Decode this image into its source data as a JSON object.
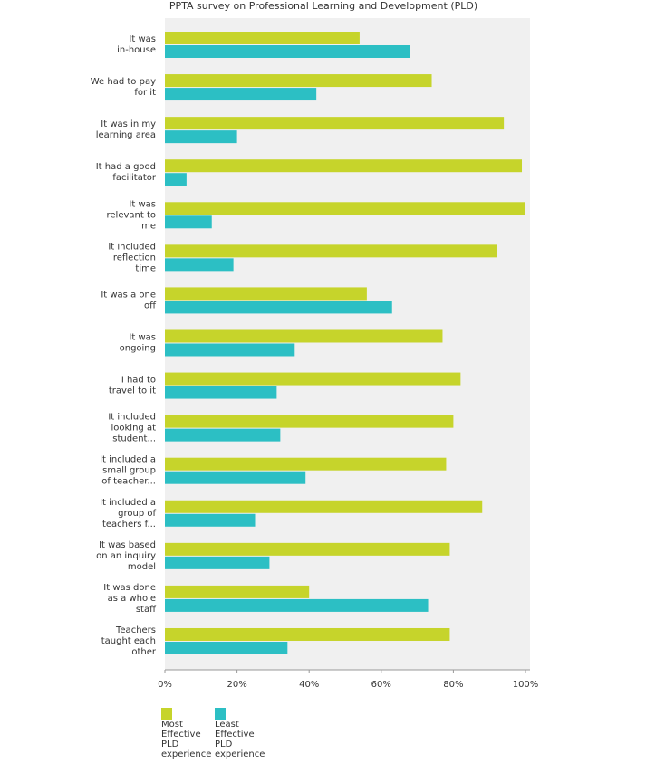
{
  "chart_data": {
    "type": "hbar",
    "title": "PPTA survey on Professional Learning and Development (PLD)",
    "categories": [
      "It was\nin-house",
      "We had to pay\nfor it",
      "It was in my\nlearning area",
      "It had a good\nfacilitator",
      "It was\nrelevant to\nme",
      "It included\nreflection\ntime",
      "It was a one\noff",
      "It was\nongoing",
      "I had to\ntravel to it",
      "It included\nlooking at\nstudent...",
      "It included a\nsmall group\nof teacher...",
      "It included a\ngroup of\nteachers f...",
      "It was based\non an inquiry\nmodel",
      "It was done\nas a whole\nstaff",
      "Teachers\ntaught each\nother"
    ],
    "series": [
      {
        "name": "Most Effective PLD experience",
        "color": "#c6d42b",
        "values": [
          54,
          74,
          94,
          99,
          100,
          92,
          56,
          77,
          82,
          80,
          78,
          88,
          79,
          40,
          79
        ]
      },
      {
        "name": "Least Effective PLD experience",
        "color": "#2cbfc4",
        "values": [
          68,
          42,
          20,
          6,
          13,
          19,
          63,
          36,
          31,
          32,
          39,
          25,
          29,
          73,
          34
        ]
      }
    ],
    "xlim": [
      0,
      100
    ],
    "xticks": [
      {
        "value": 0,
        "label": "0%"
      },
      {
        "value": 20,
        "label": "20%"
      },
      {
        "value": 40,
        "label": "40%"
      },
      {
        "value": 60,
        "label": "60%"
      },
      {
        "value": 80,
        "label": "80%"
      },
      {
        "value": 100,
        "label": "100%"
      }
    ]
  }
}
